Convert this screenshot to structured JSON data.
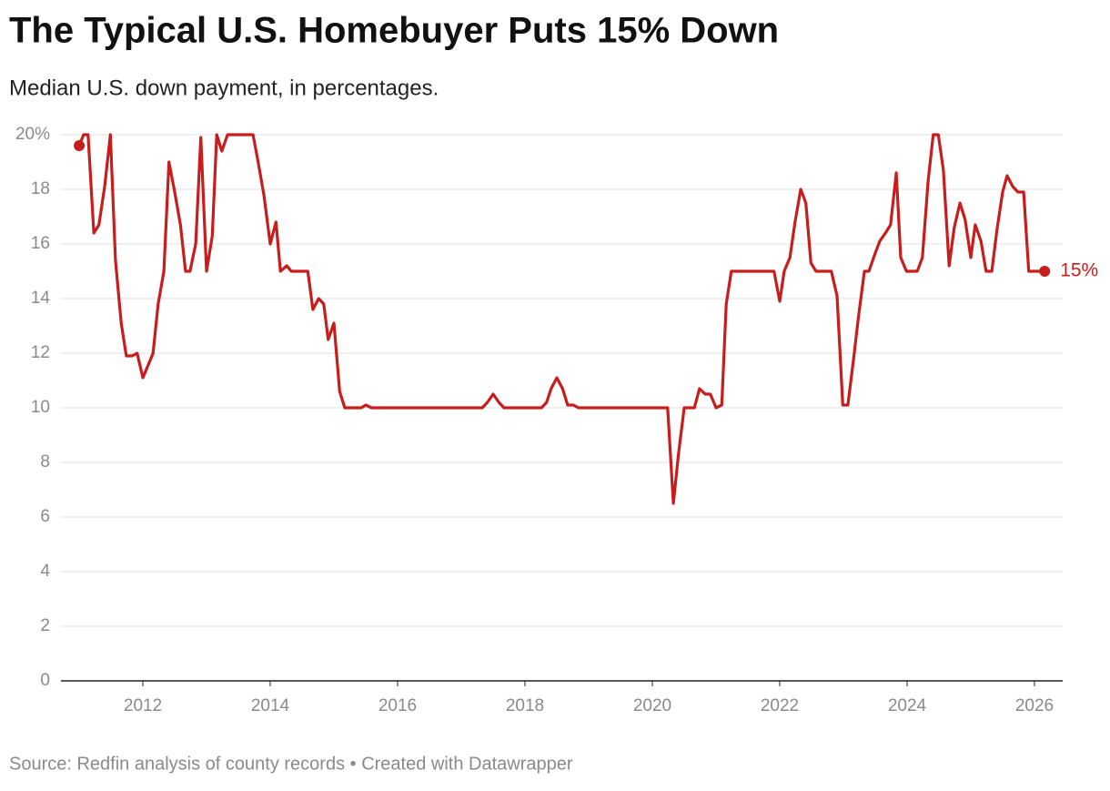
{
  "chart_data": {
    "type": "line",
    "title": "The Typical U.S. Homebuyer Puts 15% Down",
    "subtitle": "Median U.S. down payment, in percentages.",
    "source": "Source: Redfin analysis of county records • Created with Datawrapper",
    "xlim": [
      2010.714,
      2026.443
    ],
    "xticks": [
      2012,
      2014,
      2016,
      2018,
      2020,
      2022,
      2024,
      2026
    ],
    "ylim": [
      0,
      20
    ],
    "yticks": [
      0,
      2,
      4,
      6,
      8,
      10,
      12,
      14,
      16,
      18,
      {
        "value": 20,
        "label": "20%"
      }
    ],
    "grid": true,
    "last_value_label": "15%",
    "x": [
      2011.0,
      2011.07,
      2011.14,
      2011.23,
      2011.31,
      2011.4,
      2011.49,
      2011.57,
      2011.66,
      2011.74,
      2011.83,
      2011.91,
      2012.0,
      2012.09,
      2012.16,
      2012.24,
      2012.33,
      2012.41,
      2012.5,
      2012.59,
      2012.67,
      2012.74,
      2012.83,
      2012.91,
      2013.0,
      2013.09,
      2013.16,
      2013.24,
      2013.33,
      2013.73,
      2013.81,
      2013.9,
      2014.0,
      2014.09,
      2014.16,
      2014.26,
      2014.33,
      2014.59,
      2014.67,
      2014.76,
      2014.84,
      2014.91,
      2015.0,
      2015.09,
      2015.17,
      2015.43,
      2015.5,
      2015.59,
      2017.33,
      2017.41,
      2017.5,
      2017.59,
      2017.67,
      2018.26,
      2018.34,
      2018.41,
      2018.5,
      2018.59,
      2018.67,
      2018.76,
      2018.84,
      2020.24,
      2020.33,
      2020.41,
      2020.5,
      2020.66,
      2020.74,
      2020.83,
      2020.91,
      2021.0,
      2021.09,
      2021.16,
      2021.24,
      2021.91,
      2022.0,
      2022.07,
      2022.16,
      2022.24,
      2022.33,
      2022.41,
      2022.49,
      2022.57,
      2022.81,
      2022.9,
      2022.99,
      2023.07,
      2023.16,
      2023.24,
      2023.33,
      2023.4,
      2023.49,
      2023.57,
      2023.66,
      2023.74,
      2023.83,
      2023.9,
      2023.99,
      2024.16,
      2024.24,
      2024.33,
      2024.41,
      2024.49,
      2024.57,
      2024.66,
      2024.74,
      2024.83,
      2024.91,
      2025.0,
      2025.07,
      2025.16,
      2025.24,
      2025.33,
      2025.41,
      2025.5,
      2025.57,
      2025.66,
      2025.74,
      2025.83,
      2025.91,
      2026.16
    ],
    "series": [
      {
        "name": "Median down payment",
        "color": "#c71e1d",
        "values": [
          19.6,
          20,
          20,
          16.4,
          16.7,
          18.1,
          20,
          15.4,
          13.1,
          11.9,
          11.9,
          12.0,
          11.1,
          11.6,
          12.0,
          13.8,
          15.0,
          19.0,
          17.9,
          16.7,
          15.0,
          15.0,
          16.0,
          19.9,
          15.0,
          16.3,
          20,
          19.4,
          20,
          20,
          19,
          17.8,
          16.0,
          16.8,
          15.0,
          15.2,
          15,
          15,
          13.6,
          14.0,
          13.8,
          12.5,
          13.1,
          10.6,
          10,
          10,
          10.1,
          10,
          10,
          10.2,
          10.5,
          10.2,
          10,
          10,
          10.2,
          10.7,
          11.1,
          10.7,
          10.1,
          10.1,
          10,
          10,
          6.5,
          8.3,
          10,
          10,
          10.7,
          10.5,
          10.5,
          10,
          10.1,
          13.8,
          15,
          15,
          13.9,
          15,
          15.5,
          16.8,
          18.0,
          17.5,
          15.3,
          15,
          15,
          14.1,
          10.1,
          10.1,
          11.8,
          13.4,
          15,
          15,
          15.6,
          16.1,
          16.4,
          16.7,
          18.6,
          15.5,
          15,
          15,
          15.5,
          18.3,
          20,
          20,
          18.7,
          15.2,
          16.6,
          17.5,
          16.9,
          15.5,
          16.7,
          16.1,
          15,
          15,
          16.5,
          17.9,
          18.5,
          18.1,
          17.9,
          17.9,
          15,
          15
        ]
      }
    ]
  }
}
